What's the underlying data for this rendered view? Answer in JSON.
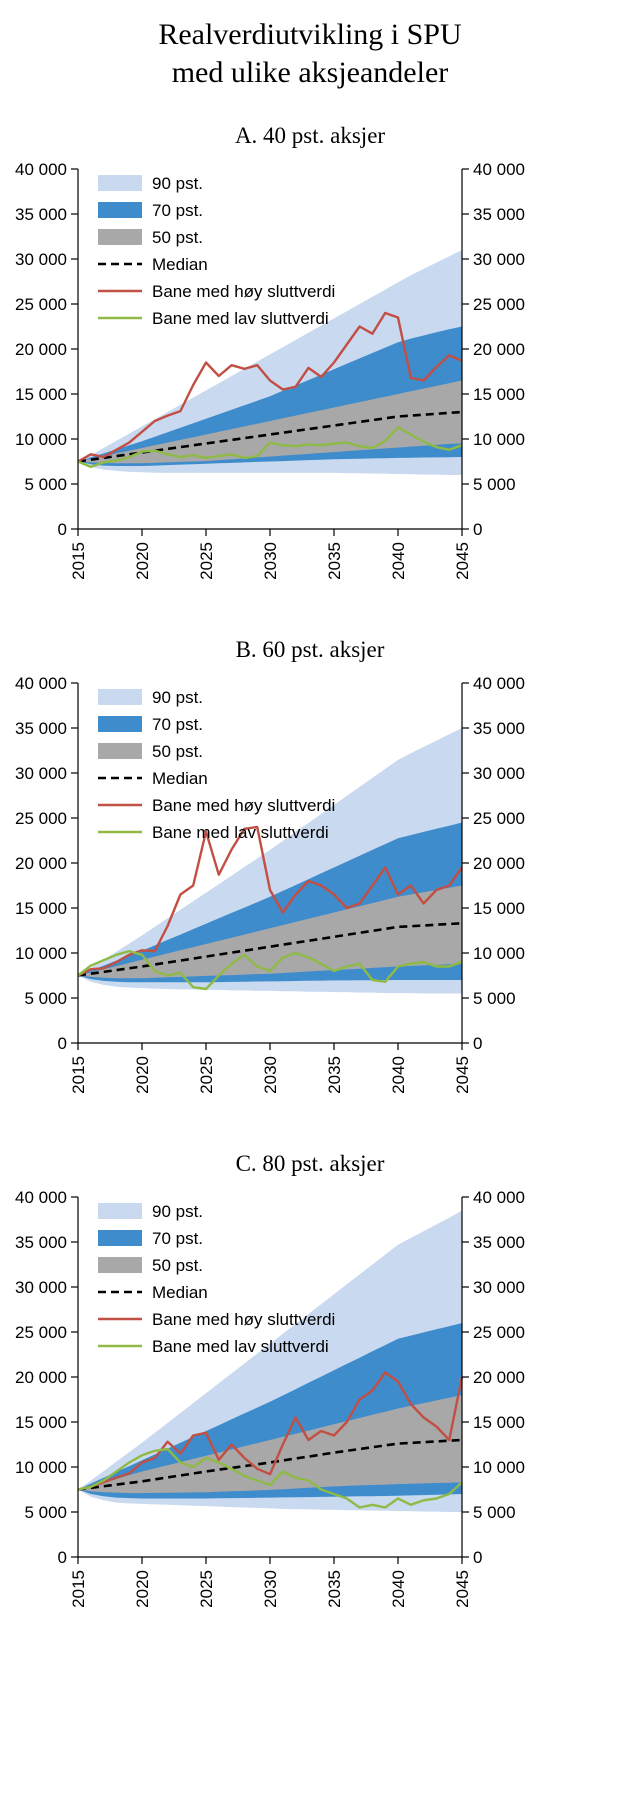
{
  "title": {
    "line1": "Realverdiutvikling i SPU",
    "line2": "med ulike aksjeandeler"
  },
  "colors": {
    "band90": "#c9d9f0",
    "band70": "#3e8ccc",
    "band50": "#a8a8a8",
    "median": "#000000",
    "high": "#c24f44",
    "low": "#8fba45"
  },
  "legend": [
    {
      "label": "90 pst.",
      "swatch": "band",
      "color_key": "band90"
    },
    {
      "label": "70 pst.",
      "swatch": "band",
      "color_key": "band70"
    },
    {
      "label": "50 pst.",
      "swatch": "band",
      "color_key": "band50"
    },
    {
      "label": "Median",
      "swatch": "dash",
      "color_key": "median"
    },
    {
      "label": "Bane med høy sluttverdi",
      "swatch": "line",
      "color_key": "high"
    },
    {
      "label": "Bane med lav sluttverdi",
      "swatch": "line",
      "color_key": "low"
    }
  ],
  "axis": {
    "y_ticks": [
      {
        "value": 0,
        "label": "0"
      },
      {
        "value": 5000,
        "label": "5 000"
      },
      {
        "value": 10000,
        "label": "10 000"
      },
      {
        "value": 15000,
        "label": "15 000"
      },
      {
        "value": 20000,
        "label": "20 000"
      },
      {
        "value": 25000,
        "label": "25 000"
      },
      {
        "value": 30000,
        "label": "30 000"
      },
      {
        "value": 35000,
        "label": "35 000"
      },
      {
        "value": 40000,
        "label": "40 000"
      }
    ],
    "x_ticks": [
      {
        "value": 2015,
        "label": "2015"
      },
      {
        "value": 2020,
        "label": "2020"
      },
      {
        "value": 2025,
        "label": "2025"
      },
      {
        "value": 2030,
        "label": "2030"
      },
      {
        "value": 2035,
        "label": "2035"
      },
      {
        "value": 2040,
        "label": "2040"
      },
      {
        "value": 2045,
        "label": "2045"
      }
    ]
  },
  "chart_data": [
    {
      "type": "area",
      "title": "A. 40 pst. aksjer",
      "ylim": [
        0,
        40000
      ],
      "xlim": [
        2015,
        2045
      ],
      "x": [
        2015,
        2016,
        2017,
        2018,
        2019,
        2020,
        2021,
        2022,
        2023,
        2024,
        2025,
        2026,
        2027,
        2028,
        2029,
        2030,
        2031,
        2032,
        2033,
        2034,
        2035,
        2036,
        2037,
        2038,
        2039,
        2040,
        2041,
        2042,
        2043,
        2044,
        2045
      ],
      "bands": {
        "p90_upper": [
          7500,
          8200,
          9000,
          9800,
          10600,
          11400,
          12200,
          13000,
          13800,
          14600,
          15400,
          16200,
          17000,
          17800,
          18600,
          19400,
          20200,
          21000,
          21800,
          22600,
          23400,
          24200,
          25000,
          25800,
          26600,
          27400,
          28200,
          28900,
          29600,
          30300,
          31000
        ],
        "p90_lower": [
          7500,
          6900,
          6600,
          6450,
          6350,
          6300,
          6250,
          6250,
          6250,
          6250,
          6250,
          6250,
          6250,
          6250,
          6250,
          6250,
          6250,
          6250,
          6250,
          6250,
          6250,
          6200,
          6200,
          6150,
          6150,
          6100,
          6100,
          6050,
          6050,
          6000,
          6000
        ],
        "p70_upper": [
          7500,
          7950,
          8400,
          8850,
          9300,
          9750,
          10250,
          10750,
          11250,
          11750,
          12250,
          12750,
          13250,
          13750,
          14250,
          14750,
          15350,
          15950,
          16550,
          17150,
          17750,
          18350,
          18950,
          19550,
          20150,
          20750,
          21150,
          21500,
          21850,
          22200,
          22500
        ],
        "p70_lower": [
          7500,
          7200,
          7050,
          7000,
          7000,
          7000,
          7050,
          7100,
          7150,
          7200,
          7250,
          7300,
          7350,
          7400,
          7450,
          7500,
          7550,
          7600,
          7650,
          7700,
          7750,
          7780,
          7810,
          7840,
          7870,
          7900,
          7920,
          7940,
          7960,
          7980,
          8000
        ],
        "p50_upper": [
          7500,
          7800,
          8100,
          8400,
          8700,
          9000,
          9300,
          9600,
          9900,
          10200,
          10500,
          10800,
          11100,
          11400,
          11700,
          12000,
          12300,
          12600,
          12900,
          13200,
          13500,
          13800,
          14100,
          14400,
          14700,
          15000,
          15300,
          15600,
          15900,
          16200,
          16500
        ],
        "p50_lower": [
          7500,
          7400,
          7350,
          7300,
          7300,
          7300,
          7350,
          7400,
          7450,
          7500,
          7550,
          7650,
          7750,
          7850,
          7950,
          8050,
          8150,
          8250,
          8350,
          8450,
          8550,
          8650,
          8750,
          8850,
          8950,
          9050,
          9150,
          9250,
          9350,
          9450,
          9500
        ]
      },
      "median": [
        7500,
        7700,
        7900,
        8100,
        8300,
        8500,
        8700,
        8900,
        9100,
        9300,
        9500,
        9700,
        9900,
        10100,
        10300,
        10500,
        10700,
        10900,
        11100,
        11300,
        11500,
        11700,
        11900,
        12100,
        12300,
        12500,
        12600,
        12700,
        12800,
        12900,
        13000
      ],
      "high": [
        7500,
        8300,
        8000,
        8800,
        9600,
        10800,
        12000,
        12600,
        13100,
        16000,
        18500,
        17000,
        18200,
        17800,
        18200,
        16500,
        15500,
        15800,
        17900,
        16900,
        18500,
        20500,
        22500,
        21700,
        24000,
        23500,
        16800,
        16500,
        18000,
        19300,
        18700
      ],
      "low": [
        7500,
        6900,
        7400,
        7600,
        8000,
        8600,
        8700,
        8300,
        8000,
        8200,
        7900,
        8100,
        8300,
        7900,
        8100,
        9600,
        9300,
        9200,
        9400,
        9300,
        9500,
        9600,
        9200,
        9000,
        9800,
        11300,
        10500,
        9700,
        9100,
        8800,
        9300
      ]
    },
    {
      "type": "area",
      "title": "B. 60 pst. aksjer",
      "ylim": [
        0,
        40000
      ],
      "xlim": [
        2015,
        2045
      ],
      "x": [
        2015,
        2016,
        2017,
        2018,
        2019,
        2020,
        2021,
        2022,
        2023,
        2024,
        2025,
        2026,
        2027,
        2028,
        2029,
        2030,
        2031,
        2032,
        2033,
        2034,
        2035,
        2036,
        2037,
        2038,
        2039,
        2040,
        2041,
        2042,
        2043,
        2044,
        2045
      ],
      "bands": {
        "p90_upper": [
          7500,
          8350,
          9250,
          10150,
          11050,
          11950,
          12900,
          13850,
          14800,
          15750,
          16700,
          17650,
          18600,
          19550,
          20500,
          21450,
          22450,
          23450,
          24450,
          25450,
          26450,
          27450,
          28450,
          29450,
          30450,
          31450,
          32200,
          32900,
          33600,
          34300,
          35000
        ],
        "p90_lower": [
          7500,
          6800,
          6450,
          6250,
          6150,
          6100,
          6050,
          6000,
          5950,
          5950,
          5900,
          5900,
          5850,
          5850,
          5800,
          5800,
          5750,
          5750,
          5700,
          5700,
          5650,
          5650,
          5600,
          5600,
          5550,
          5550,
          5550,
          5500,
          5500,
          5500,
          5500
        ],
        "p70_upper": [
          7500,
          8050,
          8600,
          9150,
          9700,
          10250,
          10850,
          11450,
          12050,
          12650,
          13250,
          13850,
          14450,
          15050,
          15650,
          16250,
          16900,
          17550,
          18200,
          18850,
          19500,
          20150,
          20800,
          21450,
          22100,
          22750,
          23100,
          23450,
          23800,
          24150,
          24500
        ],
        "p70_lower": [
          7500,
          7100,
          6900,
          6800,
          6750,
          6750,
          6750,
          6750,
          6750,
          6750,
          6750,
          6770,
          6790,
          6810,
          6830,
          6850,
          6870,
          6890,
          6910,
          6930,
          6950,
          6960,
          6970,
          6980,
          6990,
          7000,
          7000,
          7000,
          7000,
          7000,
          7000
        ],
        "p50_upper": [
          7500,
          7850,
          8200,
          8550,
          8900,
          9250,
          9600,
          9950,
          10300,
          10650,
          11000,
          11350,
          11700,
          12050,
          12400,
          12750,
          13100,
          13450,
          13800,
          14150,
          14500,
          14850,
          15200,
          15550,
          15900,
          16250,
          16500,
          16750,
          17000,
          17250,
          17500
        ],
        "p50_lower": [
          7500,
          7350,
          7250,
          7200,
          7200,
          7200,
          7250,
          7300,
          7350,
          7400,
          7450,
          7500,
          7550,
          7600,
          7650,
          7700,
          7780,
          7860,
          7940,
          8020,
          8100,
          8180,
          8260,
          8340,
          8420,
          8500,
          8560,
          8620,
          8680,
          8740,
          8800
        ]
      },
      "median": [
        7500,
        7700,
        7900,
        8100,
        8300,
        8500,
        8720,
        8940,
        9160,
        9380,
        9600,
        9820,
        10040,
        10260,
        10480,
        10700,
        10920,
        11140,
        11360,
        11580,
        11800,
        12020,
        12240,
        12460,
        12680,
        12900,
        12980,
        13060,
        13140,
        13220,
        13300
      ],
      "high": [
        7500,
        8200,
        8300,
        9000,
        9800,
        10300,
        10200,
        13000,
        16500,
        17500,
        23500,
        18700,
        21500,
        23800,
        24000,
        17000,
        14500,
        16500,
        18000,
        17500,
        16500,
        15000,
        15500,
        17500,
        19500,
        16500,
        17500,
        15500,
        17000,
        17500,
        19500
      ],
      "low": [
        7500,
        8600,
        9200,
        9800,
        10200,
        9800,
        8000,
        7500,
        7800,
        6200,
        6000,
        7500,
        8800,
        9800,
        8500,
        8000,
        9500,
        10000,
        9500,
        8800,
        8000,
        8500,
        8800,
        7000,
        6800,
        8500,
        8800,
        9000,
        8500,
        8500,
        9000
      ]
    },
    {
      "type": "area",
      "title": "C. 80 pst. aksjer",
      "ylim": [
        0,
        40000
      ],
      "xlim": [
        2015,
        2045
      ],
      "x": [
        2015,
        2016,
        2017,
        2018,
        2019,
        2020,
        2021,
        2022,
        2023,
        2024,
        2025,
        2026,
        2027,
        2028,
        2029,
        2030,
        2031,
        2032,
        2033,
        2034,
        2035,
        2036,
        2037,
        2038,
        2039,
        2040,
        2041,
        2042,
        2043,
        2044,
        2045
      ],
      "bands": {
        "p90_upper": [
          7500,
          8500,
          9550,
          10600,
          11650,
          12700,
          13800,
          14900,
          16000,
          17100,
          18200,
          19300,
          20400,
          21500,
          22600,
          23700,
          24800,
          25900,
          27000,
          28100,
          29200,
          30300,
          31400,
          32500,
          33600,
          34700,
          35450,
          36200,
          36950,
          37700,
          38500
        ],
        "p90_lower": [
          7500,
          6700,
          6300,
          6050,
          5950,
          5900,
          5850,
          5800,
          5750,
          5700,
          5650,
          5600,
          5550,
          5500,
          5450,
          5400,
          5350,
          5300,
          5300,
          5250,
          5250,
          5200,
          5200,
          5150,
          5150,
          5100,
          5100,
          5050,
          5050,
          5000,
          5000
        ],
        "p70_upper": [
          7500,
          8150,
          8800,
          9450,
          10100,
          10750,
          11400,
          12050,
          12700,
          13350,
          14000,
          14650,
          15300,
          15950,
          16600,
          17250,
          17950,
          18650,
          19350,
          20050,
          20750,
          21450,
          22150,
          22850,
          23550,
          24250,
          24600,
          24950,
          25300,
          25650,
          26000
        ],
        "p70_lower": [
          7500,
          7000,
          6750,
          6600,
          6550,
          6500,
          6500,
          6500,
          6500,
          6500,
          6500,
          6520,
          6540,
          6560,
          6580,
          6600,
          6620,
          6640,
          6660,
          6680,
          6700,
          6720,
          6740,
          6760,
          6780,
          6800,
          6840,
          6880,
          6920,
          6960,
          7000
        ],
        "p50_upper": [
          7500,
          7900,
          8300,
          8700,
          9100,
          9500,
          9850,
          10200,
          10550,
          10900,
          11250,
          11600,
          11950,
          12300,
          12650,
          13000,
          13350,
          13700,
          14050,
          14400,
          14750,
          15100,
          15450,
          15800,
          16150,
          16500,
          16800,
          17100,
          17400,
          17700,
          18000
        ],
        "p50_lower": [
          7500,
          7300,
          7200,
          7150,
          7100,
          7100,
          7120,
          7140,
          7160,
          7180,
          7200,
          7250,
          7300,
          7350,
          7400,
          7450,
          7530,
          7610,
          7690,
          7770,
          7850,
          7900,
          7950,
          8000,
          8050,
          8100,
          8140,
          8180,
          8220,
          8260,
          8300
        ]
      },
      "median": [
        7500,
        7680,
        7860,
        8040,
        8220,
        8400,
        8620,
        8840,
        9060,
        9280,
        9500,
        9700,
        9900,
        10100,
        10300,
        10500,
        10720,
        10940,
        11160,
        11380,
        11600,
        11800,
        12000,
        12200,
        12400,
        12600,
        12680,
        12760,
        12840,
        12920,
        13000
      ],
      "high": [
        7500,
        7800,
        8300,
        8800,
        9300,
        10500,
        11000,
        12800,
        11500,
        13500,
        13800,
        10800,
        12500,
        11000,
        9800,
        9200,
        12500,
        15500,
        13000,
        14000,
        13500,
        15000,
        17500,
        18500,
        20500,
        19500,
        17000,
        15500,
        14500,
        13000,
        20000
      ],
      "low": [
        7500,
        7800,
        8500,
        9500,
        10500,
        11300,
        11800,
        12000,
        10500,
        10000,
        11000,
        10500,
        9800,
        9000,
        8500,
        8000,
        9500,
        8800,
        8500,
        7500,
        7000,
        6500,
        5500,
        5800,
        5500,
        6500,
        5800,
        6300,
        6500,
        7000,
        8300
      ]
    }
  ]
}
